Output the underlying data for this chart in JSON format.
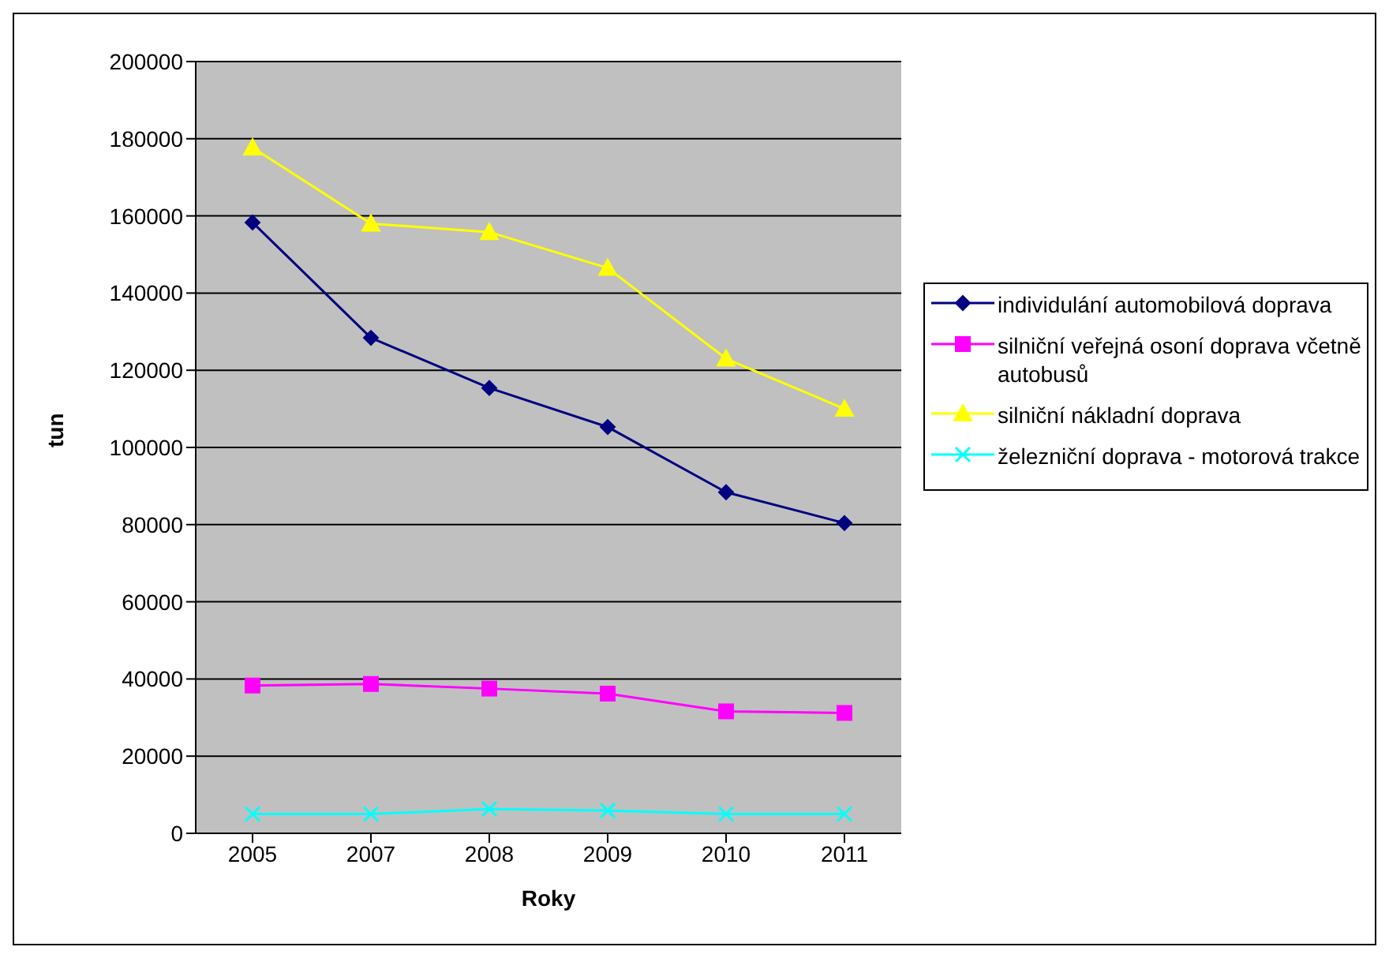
{
  "chart_data": {
    "type": "line",
    "xlabel": "Roky",
    "ylabel": "tun",
    "categories": [
      "2005",
      "2007",
      "2008",
      "2009",
      "2010",
      "2011"
    ],
    "series": [
      {
        "name": "individulání automobilová doprava",
        "color": "#000080",
        "marker": "diamond",
        "values": [
          158300,
          128400,
          115400,
          105300,
          88400,
          80400
        ]
      },
      {
        "name": "silniční veřejná osoní doprava včetně autobusů",
        "color": "#ff00ff",
        "marker": "square",
        "values": [
          38300,
          38700,
          37500,
          36200,
          31600,
          31200
        ]
      },
      {
        "name": "silniční nákladní doprava",
        "color": "#ffff00",
        "marker": "triangle",
        "values": [
          177700,
          158000,
          155800,
          146500,
          123000,
          110000
        ]
      },
      {
        "name": "železniční doprava - motorová trakce",
        "color": "#00ffff",
        "marker": "cross",
        "values": [
          5000,
          5000,
          6300,
          5900,
          5000,
          5000
        ]
      }
    ],
    "ylim": [
      0,
      200000
    ],
    "yticks": [
      0,
      20000,
      40000,
      60000,
      80000,
      100000,
      120000,
      140000,
      160000,
      180000,
      200000
    ],
    "grid": "y",
    "legend": "right"
  }
}
